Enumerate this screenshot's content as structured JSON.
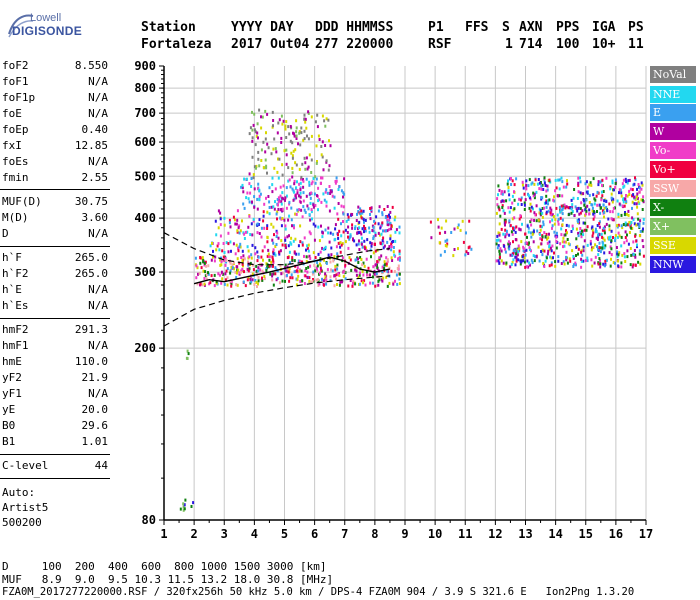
{
  "logo": {
    "top": "Lowell",
    "bottom": "DIGISONDE"
  },
  "header": {
    "row1": [
      "Station",
      "YYYY DAY",
      "DDD HHMMSS",
      "P1",
      "FFS",
      "S",
      "AXN",
      "PPS",
      "IGA",
      "PS"
    ],
    "row2": [
      "Fortaleza",
      "2017 Out04",
      "277 220000",
      "RSF",
      "",
      "1",
      "714",
      "100",
      "10+",
      "11"
    ]
  },
  "params_group1": [
    {
      "k": "foF2",
      "v": "8.550"
    },
    {
      "k": "foF1",
      "v": "N/A"
    },
    {
      "k": "foF1p",
      "v": "N/A"
    },
    {
      "k": "foE",
      "v": "N/A"
    },
    {
      "k": "foEp",
      "v": "0.40"
    },
    {
      "k": "fxI",
      "v": "12.85"
    },
    {
      "k": "foEs",
      "v": "N/A"
    },
    {
      "k": "fmin",
      "v": "2.55"
    }
  ],
  "params_group2": [
    {
      "k": "MUF(D)",
      "v": "30.75"
    },
    {
      "k": "M(D)",
      "v": "3.60"
    },
    {
      "k": "D",
      "v": "N/A"
    }
  ],
  "params_group3": [
    {
      "k": "h`F",
      "v": "265.0"
    },
    {
      "k": "h`F2",
      "v": "265.0"
    },
    {
      "k": "h`E",
      "v": "N/A"
    },
    {
      "k": "h`Es",
      "v": "N/A"
    }
  ],
  "params_group4": [
    {
      "k": "hmF2",
      "v": "291.3"
    },
    {
      "k": "hmF1",
      "v": "N/A"
    },
    {
      "k": "hmE",
      "v": "110.0"
    },
    {
      "k": "yF2",
      "v": "21.9"
    },
    {
      "k": "yF1",
      "v": "N/A"
    },
    {
      "k": "yE",
      "v": "20.0"
    },
    {
      "k": "B0",
      "v": "29.6"
    },
    {
      "k": "B1",
      "v": "1.01"
    }
  ],
  "clevel": {
    "k": "C-level",
    "v": "44"
  },
  "auto": {
    "line1": "Auto:",
    "line2": "Artist5",
    "line3": "500200"
  },
  "legend": [
    {
      "label": "NoVal",
      "color": "#7f7f7f"
    },
    {
      "label": "NNE",
      "color": "#22d8f0"
    },
    {
      "label": "E",
      "color": "#3aa0f0"
    },
    {
      "label": "W",
      "color": "#b000a0"
    },
    {
      "label": "Vo-",
      "color": "#f03cc8"
    },
    {
      "label": "Vo+",
      "color": "#f00040"
    },
    {
      "label": "SSW",
      "color": "#f7a8a8"
    },
    {
      "label": "X-",
      "color": "#108010"
    },
    {
      "label": "X+",
      "color": "#80c060"
    },
    {
      "label": "SSE",
      "color": "#d8d800"
    },
    {
      "label": "NNW",
      "color": "#2a18e0"
    }
  ],
  "chart_data": {
    "type": "scatter",
    "title": "",
    "xlabel": "",
    "ylabel": "",
    "xlim": [
      1,
      17
    ],
    "ylim": [
      80,
      900
    ],
    "y_scale": "log",
    "x_ticks": [
      "1",
      "2",
      "3",
      "4",
      "5",
      "6",
      "7",
      "8",
      "9",
      "10",
      "11",
      "12",
      "13",
      "14",
      "15",
      "16",
      "17"
    ],
    "y_ticks": [
      "80",
      "200",
      "300",
      "400",
      "500",
      "600",
      "700",
      "800",
      "900"
    ],
    "grid": true,
    "legend_position": "right",
    "upper_curve": [
      {
        "x": 1.0,
        "y": 370
      },
      {
        "x": 2.0,
        "y": 340
      },
      {
        "x": 3.0,
        "y": 320
      },
      {
        "x": 4.0,
        "y": 312
      },
      {
        "x": 5.0,
        "y": 312
      },
      {
        "x": 6.0,
        "y": 318
      },
      {
        "x": 7.0,
        "y": 328
      },
      {
        "x": 7.8,
        "y": 336
      },
      {
        "x": 8.5,
        "y": 340
      }
    ],
    "lower_curve": [
      {
        "x": 1.0,
        "y": 225
      },
      {
        "x": 2.0,
        "y": 246
      },
      {
        "x": 3.0,
        "y": 258
      },
      {
        "x": 4.0,
        "y": 268
      },
      {
        "x": 5.0,
        "y": 276
      },
      {
        "x": 6.0,
        "y": 283
      },
      {
        "x": 7.0,
        "y": 288
      },
      {
        "x": 8.0,
        "y": 292
      },
      {
        "x": 8.5,
        "y": 294
      }
    ],
    "trace": [
      {
        "x": 2.0,
        "y": 282
      },
      {
        "x": 2.5,
        "y": 288
      },
      {
        "x": 3.0,
        "y": 285
      },
      {
        "x": 3.5,
        "y": 290
      },
      {
        "x": 4.0,
        "y": 295
      },
      {
        "x": 4.5,
        "y": 300
      },
      {
        "x": 5.0,
        "y": 306
      },
      {
        "x": 5.5,
        "y": 312
      },
      {
        "x": 6.0,
        "y": 318
      },
      {
        "x": 6.5,
        "y": 325
      },
      {
        "x": 7.0,
        "y": 318
      },
      {
        "x": 7.5,
        "y": 305
      },
      {
        "x": 8.0,
        "y": 300
      },
      {
        "x": 8.5,
        "y": 305
      }
    ],
    "point_clusters": [
      {
        "x": [
          2.0,
          8.8
        ],
        "y": [
          280,
          330
        ],
        "count": 500,
        "colors": [
          "#f00040",
          "#d8d800",
          "#f7a8a8",
          "#f03cc8",
          "#b000a0",
          "#3aa0f0",
          "#108010"
        ]
      },
      {
        "x": [
          2.5,
          8.8
        ],
        "y": [
          330,
          420
        ],
        "count": 320,
        "colors": [
          "#3aa0f0",
          "#22d8f0",
          "#f03cc8",
          "#b000a0",
          "#2a18e0",
          "#f00040",
          "#d8d800"
        ]
      },
      {
        "x": [
          3.5,
          7.0
        ],
        "y": [
          420,
          500
        ],
        "count": 180,
        "colors": [
          "#b000a0",
          "#22d8f0",
          "#3aa0f0",
          "#f03cc8"
        ]
      },
      {
        "x": [
          3.8,
          6.5
        ],
        "y": [
          500,
          720
        ],
        "count": 160,
        "colors": [
          "#d8d800",
          "#b000a0",
          "#80c060",
          "#7f7f7f"
        ]
      },
      {
        "x": [
          7.2,
          8.6
        ],
        "y": [
          340,
          430
        ],
        "count": 80,
        "colors": [
          "#f00040",
          "#b000a0",
          "#2a18e0",
          "#3aa0f0"
        ]
      },
      {
        "x": [
          9.8,
          11.2
        ],
        "y": [
          330,
          400
        ],
        "count": 35,
        "colors": [
          "#d8d800",
          "#f00040",
          "#3aa0f0",
          "#b000a0"
        ]
      },
      {
        "x": [
          12.0,
          16.9
        ],
        "y": [
          310,
          500
        ],
        "count": 900,
        "colors": [
          "#2a18e0",
          "#3aa0f0",
          "#22d8f0",
          "#b000a0",
          "#f03cc8",
          "#f00040",
          "#d8d800",
          "#108010"
        ]
      },
      {
        "x": [
          1.5,
          2.0
        ],
        "y": [
          84,
          90
        ],
        "count": 10,
        "colors": [
          "#108010",
          "#2a18e0",
          "#80c060"
        ]
      },
      {
        "x": [
          1.7,
          1.8
        ],
        "y": [
          190,
          200
        ],
        "count": 4,
        "colors": [
          "#108010",
          "#80c060"
        ]
      }
    ]
  },
  "footer": {
    "d_row": "D     100  200  400  600  800 1000 1500 3000 [km]",
    "muf_row": "MUF   8.9  9.0  9.5 10.3 11.5 13.2 18.0 30.8 [MHz]",
    "file_row": "FZA0M_2017277220000.RSF / 320fx256h 50 kHz 5.0 km / DPS-4 FZA0M 904 / 3.9 S 321.6 E   Ion2Png 1.3.20"
  }
}
